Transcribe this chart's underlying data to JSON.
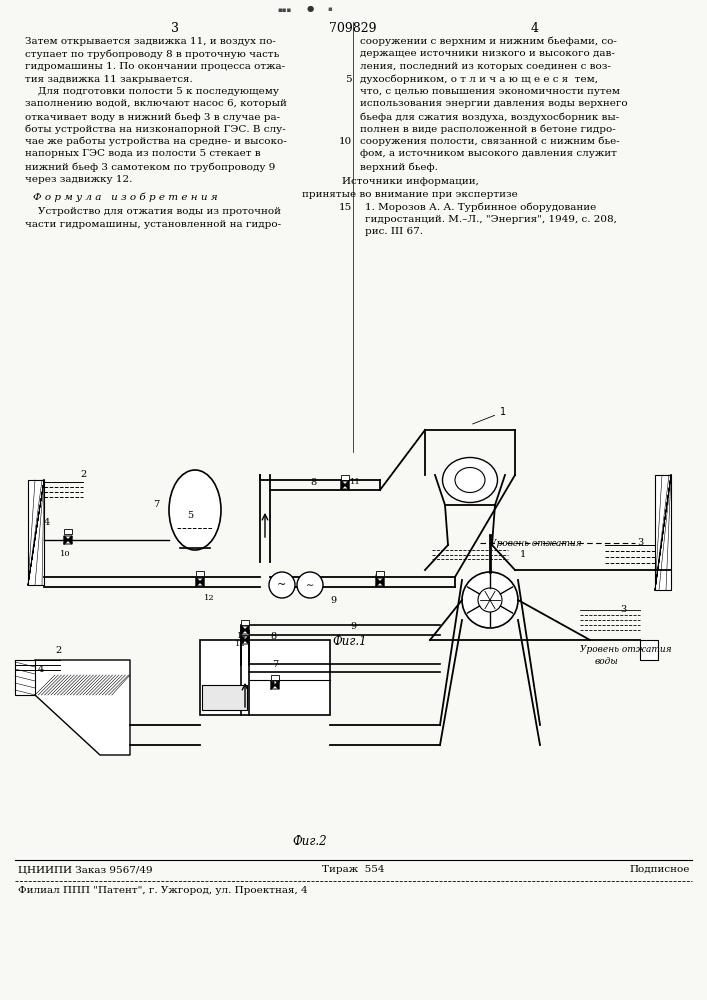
{
  "page_color": "#f8f8f4",
  "title_number": "709829",
  "col_left_number": "3",
  "col_right_number": "4",
  "text_col_left_top": [
    "Затем открывается задвижка 11, и воздух по-",
    "ступает по трубопроводу 8 в проточную часть",
    "гидромашины 1. По окончании процесса отжа-",
    "тия задвижка 11 закрывается.",
    "    Для подготовки полости 5 к последующему",
    "заполнению водой, включают насос 6, который",
    "откачивает воду в нижний бьеф 3 в случае ра-",
    "боты устройства на низконапорной ГЭС. В слу-",
    "чае же работы устройства на средне- и высоко-",
    "напорных ГЭС вода из полости 5 стекает в",
    "нижний бьеф 3 самотеком по трубопроводу 9",
    "через задвижку 12."
  ],
  "formula_header": "Ф о р м у л а   и з о б р е т е н и я",
  "formula_text": [
    "    Устройство для отжатия воды из проточной",
    "части гидромашины, установленной на гидро-"
  ],
  "text_col_right_top": [
    "сооружении с верхним и нижним бьефами, со-",
    "держащее источники низкого и высокого дав-",
    "ления, последний из которых соединен с воз-",
    "духосборником, о т л и ч а ю щ е е с я  тем,",
    "что, с целью повышения экономичности путем",
    "использования энергии давления воды верхнего",
    "бьефа для сжатия воздуха, воздухосборник вы-",
    "полнен в виде расположенной в бетоне гидро-",
    "сооружения полости, связанной с нижним бье-",
    "фом, а источником высокого давления служит",
    "верхний бьеф."
  ],
  "sources_header": "Источники информации,",
  "sources_sub": "принятые во внимание при экспертизе",
  "source_1": "1. Морозов А. А. Турбинное оборудование",
  "source_2": "гидростанций. М.–Л., \"Энергия\", 1949, с. 208,",
  "source_3": "рис. III 67.",
  "fig1_caption": "Фиг.1",
  "fig2_caption": "Фиг.2",
  "footer_left": "ЦНИИПИ Заказ 9567/49",
  "footer_center": "Тираж  554",
  "footer_right": "Подписное",
  "footer_bottom": "Филиал ППП \"Патент\", г. Ужгород, ул. Проектная, 4"
}
